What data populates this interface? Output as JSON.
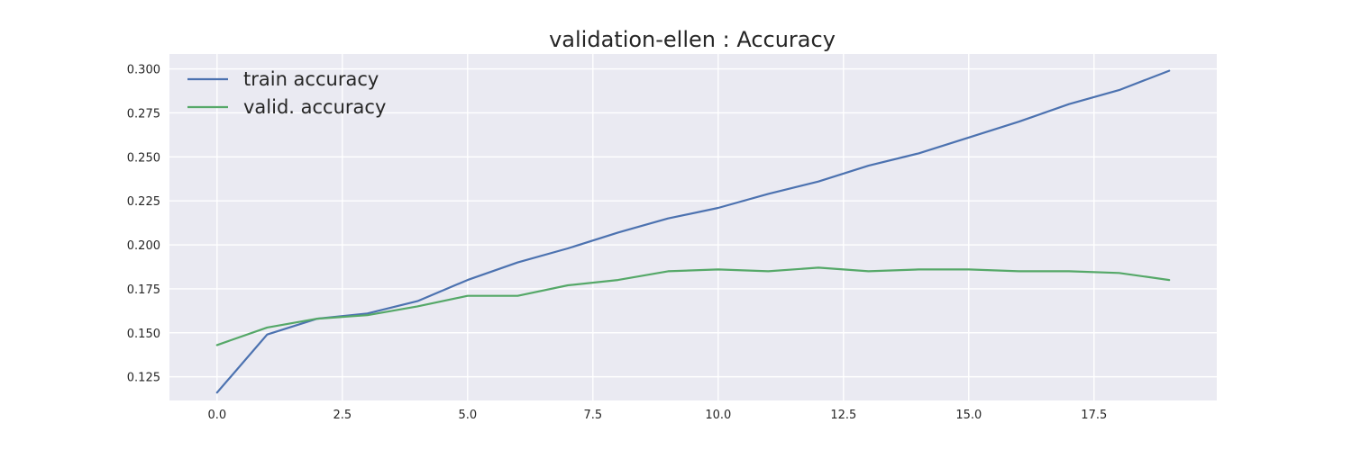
{
  "chart_data": {
    "type": "line",
    "title": "validation-ellen : Accuracy",
    "xlabel": "",
    "ylabel": "",
    "xlim": [
      -0.95,
      19.95
    ],
    "ylim": [
      0.1115,
      0.3085
    ],
    "xticks": [
      0,
      2.5,
      5,
      7.5,
      10,
      12.5,
      15,
      17.5
    ],
    "xtick_labels": [
      "0.0",
      "2.5",
      "5.0",
      "7.5",
      "10.0",
      "12.5",
      "15.0",
      "17.5"
    ],
    "yticks": [
      0.125,
      0.15,
      0.175,
      0.2,
      0.225,
      0.25,
      0.275,
      0.3
    ],
    "ytick_labels": [
      "0.125",
      "0.150",
      "0.175",
      "0.200",
      "0.225",
      "0.250",
      "0.275",
      "0.300"
    ],
    "grid": true,
    "legend_position": "top-left",
    "x": [
      0,
      1,
      2,
      3,
      4,
      5,
      6,
      7,
      8,
      9,
      10,
      11,
      12,
      13,
      14,
      15,
      16,
      17,
      18,
      19
    ],
    "series": [
      {
        "name": "train accuracy",
        "color": "#4c72b0",
        "values": [
          0.116,
          0.149,
          0.158,
          0.161,
          0.168,
          0.18,
          0.19,
          0.198,
          0.207,
          0.215,
          0.221,
          0.229,
          0.236,
          0.245,
          0.252,
          0.261,
          0.27,
          0.28,
          0.288,
          0.299
        ]
      },
      {
        "name": "valid. accuracy",
        "color": "#55a868",
        "values": [
          0.143,
          0.153,
          0.158,
          0.16,
          0.165,
          0.171,
          0.171,
          0.177,
          0.18,
          0.185,
          0.186,
          0.185,
          0.187,
          0.185,
          0.186,
          0.186,
          0.185,
          0.185,
          0.184,
          0.18
        ]
      }
    ],
    "plot_background": "#eaeaf2"
  }
}
